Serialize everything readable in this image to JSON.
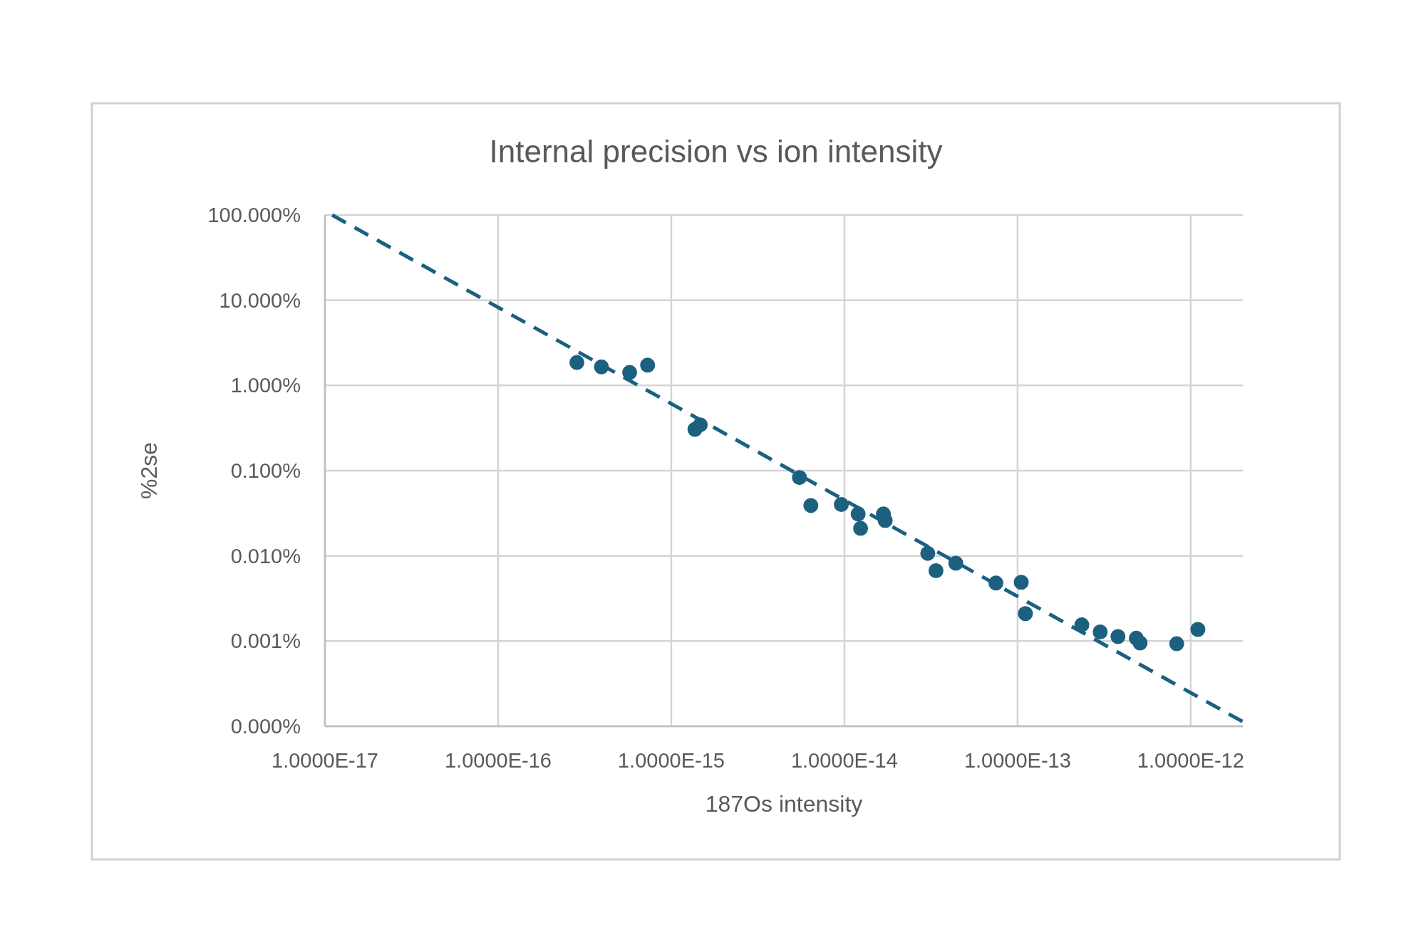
{
  "chart_data": {
    "type": "scatter",
    "title": "Internal precision vs ion intensity",
    "xlabel": "187Os intensity",
    "ylabel": "%2se",
    "log": "xy",
    "grid": true,
    "marker": "circle",
    "xlim": [
      1e-17,
      2e-12
    ],
    "ylim": [
      0.0001,
      100
    ],
    "xticks": [
      {
        "value": 1e-17,
        "label": "1.0000E-17"
      },
      {
        "value": 1e-16,
        "label": "1.0000E-16"
      },
      {
        "value": 1e-15,
        "label": "1.0000E-15"
      },
      {
        "value": 1e-14,
        "label": "1.0000E-14"
      },
      {
        "value": 1e-13,
        "label": "1.0000E-13"
      },
      {
        "value": 1e-12,
        "label": "1.0000E-12"
      }
    ],
    "yticks": [
      {
        "value": 0.0001,
        "label": "0.000%"
      },
      {
        "value": 0.001,
        "label": "0.001%"
      },
      {
        "value": 0.01,
        "label": "0.010%"
      },
      {
        "value": 0.1,
        "label": "0.100%"
      },
      {
        "value": 1,
        "label": "1.000%"
      },
      {
        "value": 10,
        "label": "10.000%"
      },
      {
        "value": 100,
        "label": "100.000%"
      }
    ],
    "series": [
      {
        "color": "#1c6080",
        "x": [
          2.85e-16,
          3.95e-16,
          5.75e-16,
          7.3e-16,
          1.37e-15,
          1.47e-15,
          5.5e-15,
          6.4e-15,
          9.6e-15,
          1.2e-14,
          1.24e-14,
          1.68e-14,
          1.72e-14,
          3.03e-14,
          3.38e-14,
          4.4e-14,
          7.5e-14,
          1.05e-13,
          1.11e-13,
          2.35e-13,
          3e-13,
          3.8e-13,
          4.85e-13,
          5.1e-13,
          8.3e-13,
          1.1e-12
        ],
        "values": [
          1.86,
          1.65,
          1.42,
          1.73,
          0.305,
          0.345,
          0.083,
          0.039,
          0.04,
          0.031,
          0.021,
          0.031,
          0.026,
          0.0107,
          0.0067,
          0.0082,
          0.0048,
          0.0049,
          0.0021,
          0.00155,
          0.00128,
          0.00113,
          0.00108,
          0.00095,
          0.00093,
          0.00137
        ]
      },
      {
        "type": "line",
        "color": "#1c6080",
        "marker": "none",
        "line_style": "dashed",
        "x": [
          1.1e-17,
          2e-12
        ],
        "values": [
          100,
          0.000113
        ]
      }
    ]
  }
}
